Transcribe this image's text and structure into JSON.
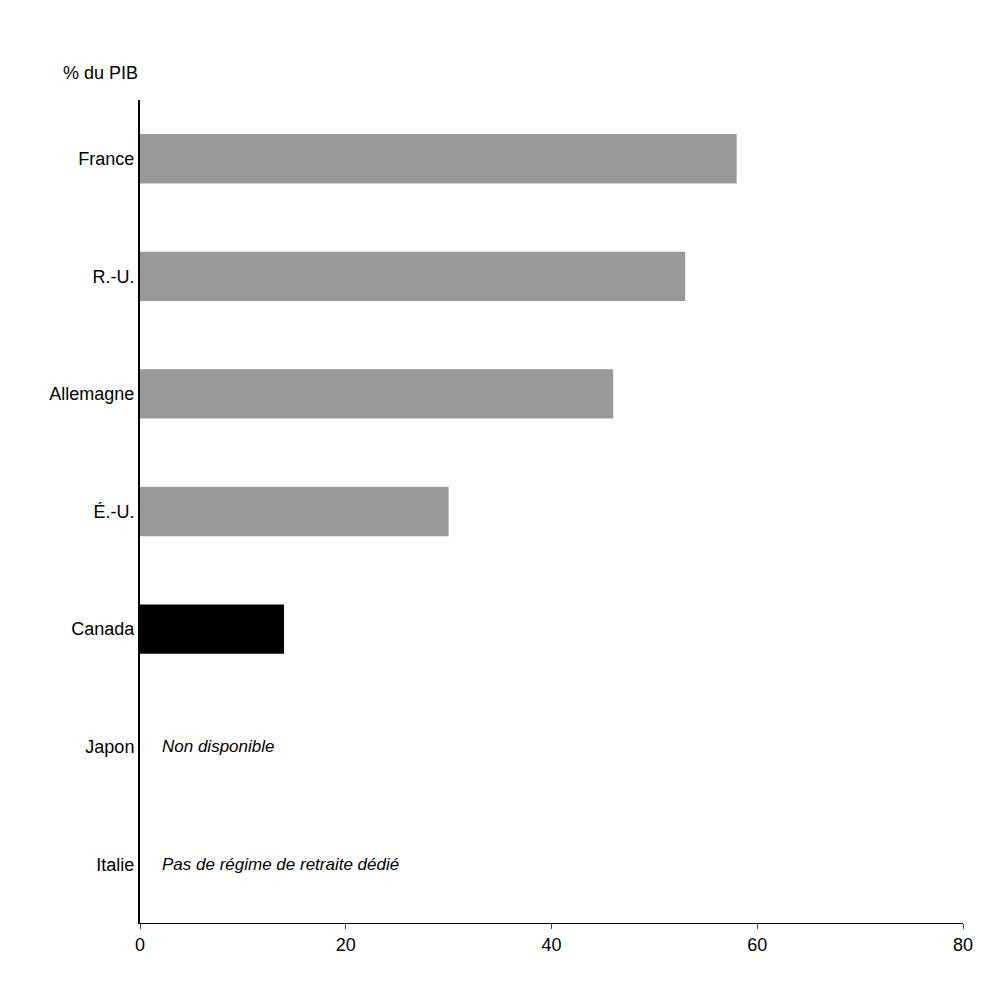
{
  "chart_data": {
    "type": "bar",
    "orientation": "horizontal",
    "xlabel": "% du PIB",
    "categories": [
      "France",
      "R.-U.",
      "Allemagne",
      "É.-U.",
      "Canada",
      "Japon",
      "Italie"
    ],
    "values": [
      58,
      53,
      46,
      30,
      14,
      null,
      null
    ],
    "colors": [
      "#999999",
      "#999999",
      "#999999",
      "#999999",
      "#000000",
      null,
      null
    ],
    "xlim": [
      0,
      80
    ],
    "xticks": [
      0,
      20,
      40,
      60,
      80
    ],
    "annotations": [
      {
        "text": "Non disponible",
        "category": "Japon"
      },
      {
        "text": "Pas de régime de retraite dédié",
        "category": "Italie"
      }
    ],
    "grid": false
  }
}
